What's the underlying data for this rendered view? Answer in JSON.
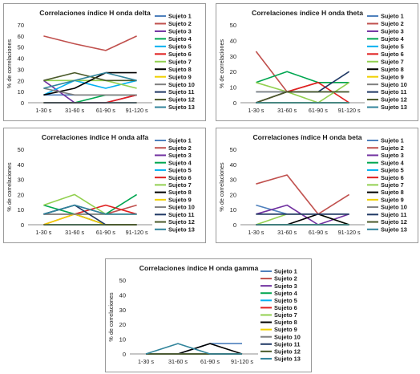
{
  "ylabel": "% de correlaciones",
  "chart_data": [
    {
      "type": "line",
      "title": "Correlaciones índice H onda delta",
      "categories": [
        "1-30 s",
        "31-60 s",
        "61-90 s",
        "91-120 s"
      ],
      "ylim": [
        0,
        70
      ],
      "yticks": [
        0,
        10,
        20,
        30,
        40,
        50,
        60,
        70
      ],
      "ylabel": "% de correlaciones",
      "series": [
        {
          "name": "Sujeto 1",
          "color": "#4F81BD",
          "values": [
            7,
            7,
            7,
            7
          ]
        },
        {
          "name": "Sujeto 2",
          "color": "#C0504D",
          "values": [
            60,
            53,
            47,
            60
          ]
        },
        {
          "name": "Sujeto 3",
          "color": "#7030A0",
          "values": [
            20,
            0,
            0,
            7
          ]
        },
        {
          "name": "Sujeto 4",
          "color": "#00A650",
          "values": [
            0,
            0,
            7,
            7
          ]
        },
        {
          "name": "Sujeto 5",
          "color": "#00B0F0",
          "values": [
            7,
            20,
            13,
            20
          ]
        },
        {
          "name": "Sujeto 6",
          "color": "#E02020",
          "values": [
            0,
            0,
            0,
            7
          ]
        },
        {
          "name": "Sujeto 7",
          "color": "#92D050",
          "values": [
            20,
            20,
            20,
            13
          ]
        },
        {
          "name": "Sujeto 8",
          "color": "#000000",
          "values": [
            7,
            13,
            27,
            27
          ]
        },
        {
          "name": "Sujeto 9",
          "color": "#F0D000",
          "values": [
            0,
            0,
            0,
            0
          ]
        },
        {
          "name": "Sujeto 10",
          "color": "#7F7F7F",
          "values": [
            13,
            7,
            7,
            7
          ]
        },
        {
          "name": "Sujeto 11",
          "color": "#1F3864",
          "values": [
            0,
            0,
            0,
            0
          ]
        },
        {
          "name": "Sujeto 12",
          "color": "#4A5A2A",
          "values": [
            20,
            27,
            20,
            20
          ]
        },
        {
          "name": "Sujeto 13",
          "color": "#31849B",
          "values": [
            13,
            20,
            27,
            20
          ]
        }
      ]
    },
    {
      "type": "line",
      "title": "Correlaciones índice H onda theta",
      "categories": [
        "1-30 s",
        "31-60 s",
        "61-90 s",
        "91-120 s"
      ],
      "ylim": [
        0,
        50
      ],
      "yticks": [
        0,
        10,
        20,
        30,
        40,
        50
      ],
      "ylabel": "% de correlaciones",
      "series": [
        {
          "name": "Sujeto 1",
          "color": "#4F81BD",
          "values": [
            7,
            7,
            7,
            7
          ]
        },
        {
          "name": "Sujeto 2",
          "color": "#C0504D",
          "values": [
            33,
            7,
            13,
            13
          ]
        },
        {
          "name": "Sujeto 3",
          "color": "#7030A0",
          "values": [
            0,
            0,
            0,
            0
          ]
        },
        {
          "name": "Sujeto 4",
          "color": "#00A650",
          "values": [
            13,
            20,
            13,
            13
          ]
        },
        {
          "name": "Sujeto 5",
          "color": "#00B0F0",
          "values": [
            0,
            0,
            0,
            0
          ]
        },
        {
          "name": "Sujeto 6",
          "color": "#E02020",
          "values": [
            0,
            7,
            13,
            0
          ]
        },
        {
          "name": "Sujeto 7",
          "color": "#92D050",
          "values": [
            13,
            7,
            0,
            13
          ]
        },
        {
          "name": "Sujeto 8",
          "color": "#000000",
          "values": [
            0,
            0,
            0,
            0
          ]
        },
        {
          "name": "Sujeto 9",
          "color": "#F0D000",
          "values": [
            0,
            0,
            0,
            0
          ]
        },
        {
          "name": "Sujeto 10",
          "color": "#7F7F7F",
          "values": [
            7,
            7,
            7,
            7
          ]
        },
        {
          "name": "Sujeto 11",
          "color": "#1F3864",
          "values": [
            0,
            7,
            7,
            20
          ]
        },
        {
          "name": "Sujeto 12",
          "color": "#4A5A2A",
          "values": [
            0,
            7,
            7,
            7
          ]
        },
        {
          "name": "Sujeto 13",
          "color": "#31849B",
          "values": [
            0,
            0,
            0,
            0
          ]
        }
      ]
    },
    {
      "type": "line",
      "title": "Correlaciones índice H onda alfa",
      "categories": [
        "1-30 s",
        "31-60 s",
        "61-90 s",
        "91-120 s"
      ],
      "ylim": [
        0,
        50
      ],
      "yticks": [
        0,
        10,
        20,
        30,
        40,
        50
      ],
      "ylabel": "% de correlaciones",
      "series": [
        {
          "name": "Sujeto 1",
          "color": "#4F81BD",
          "values": [
            7,
            13,
            7,
            7
          ]
        },
        {
          "name": "Sujeto 2",
          "color": "#C0504D",
          "values": [
            7,
            7,
            7,
            13
          ]
        },
        {
          "name": "Sujeto 3",
          "color": "#7030A0",
          "values": [
            0,
            0,
            0,
            0
          ]
        },
        {
          "name": "Sujeto 4",
          "color": "#00A650",
          "values": [
            13,
            7,
            7,
            20
          ]
        },
        {
          "name": "Sujeto 5",
          "color": "#00B0F0",
          "values": [
            0,
            0,
            0,
            0
          ]
        },
        {
          "name": "Sujeto 6",
          "color": "#E02020",
          "values": [
            0,
            7,
            13,
            7
          ]
        },
        {
          "name": "Sujeto 7",
          "color": "#92D050",
          "values": [
            13,
            20,
            7,
            7
          ]
        },
        {
          "name": "Sujeto 8",
          "color": "#000000",
          "values": [
            7,
            7,
            0,
            0
          ]
        },
        {
          "name": "Sujeto 9",
          "color": "#F0D000",
          "values": [
            0,
            7,
            0,
            0
          ]
        },
        {
          "name": "Sujeto 10",
          "color": "#7F7F7F",
          "values": [
            7,
            7,
            7,
            7
          ]
        },
        {
          "name": "Sujeto 11",
          "color": "#1F3864",
          "values": [
            7,
            13,
            0,
            0
          ]
        },
        {
          "name": "Sujeto 12",
          "color": "#4A5A2A",
          "values": [
            0,
            0,
            0,
            0
          ]
        },
        {
          "name": "Sujeto 13",
          "color": "#31849B",
          "values": [
            7,
            13,
            7,
            7
          ]
        }
      ]
    },
    {
      "type": "line",
      "title": "Correlaciones índice H onda beta",
      "categories": [
        "1-30 s",
        "31-60 s",
        "61-90 s",
        "91-120 s"
      ],
      "ylim": [
        0,
        50
      ],
      "yticks": [
        0,
        10,
        20,
        30,
        40,
        50
      ],
      "ylabel": "% de correlaciones",
      "series": [
        {
          "name": "Sujeto 1",
          "color": "#4F81BD",
          "values": [
            13,
            7,
            7,
            7
          ]
        },
        {
          "name": "Sujeto 2",
          "color": "#C0504D",
          "values": [
            27,
            33,
            7,
            20
          ]
        },
        {
          "name": "Sujeto 3",
          "color": "#7030A0",
          "values": [
            7,
            13,
            0,
            7
          ]
        },
        {
          "name": "Sujeto 4",
          "color": "#00A650",
          "values": [
            0,
            0,
            0,
            0
          ]
        },
        {
          "name": "Sujeto 5",
          "color": "#00B0F0",
          "values": [
            0,
            0,
            0,
            0
          ]
        },
        {
          "name": "Sujeto 6",
          "color": "#E02020",
          "values": [
            0,
            0,
            0,
            0
          ]
        },
        {
          "name": "Sujeto 7",
          "color": "#92D050",
          "values": [
            0,
            7,
            7,
            0
          ]
        },
        {
          "name": "Sujeto 8",
          "color": "#000000",
          "values": [
            0,
            0,
            7,
            0
          ]
        },
        {
          "name": "Sujeto 9",
          "color": "#F0D000",
          "values": [
            0,
            0,
            0,
            0
          ]
        },
        {
          "name": "Sujeto 10",
          "color": "#7F7F7F",
          "values": [
            7,
            7,
            7,
            7
          ]
        },
        {
          "name": "Sujeto 11",
          "color": "#1F3864",
          "values": [
            7,
            7,
            7,
            7
          ]
        },
        {
          "name": "Sujeto 12",
          "color": "#4A5A2A",
          "values": [
            0,
            0,
            0,
            0
          ]
        },
        {
          "name": "Sujeto 13",
          "color": "#31849B",
          "values": [
            0,
            0,
            0,
            0
          ]
        }
      ]
    },
    {
      "type": "line",
      "title": "Correlaciones índice H onda gamma",
      "categories": [
        "1-30 s",
        "31-60 s",
        "61-90 s",
        "91-120 s"
      ],
      "ylim": [
        0,
        50
      ],
      "yticks": [
        0,
        10,
        20,
        30,
        40,
        50
      ],
      "ylabel": "% de correlaciones",
      "series": [
        {
          "name": "Sujeto 1",
          "color": "#4F81BD",
          "values": [
            0,
            0,
            7,
            7
          ]
        },
        {
          "name": "Sujeto 2",
          "color": "#C0504D",
          "values": [
            0,
            0,
            0,
            0
          ]
        },
        {
          "name": "Sujeto 3",
          "color": "#7030A0",
          "values": [
            0,
            0,
            0,
            0
          ]
        },
        {
          "name": "Sujeto 4",
          "color": "#00A650",
          "values": [
            0,
            0,
            0,
            0
          ]
        },
        {
          "name": "Sujeto 5",
          "color": "#00B0F0",
          "values": [
            0,
            0,
            0,
            0
          ]
        },
        {
          "name": "Sujeto 6",
          "color": "#E02020",
          "values": [
            0,
            0,
            0,
            0
          ]
        },
        {
          "name": "Sujeto 7",
          "color": "#92D050",
          "values": [
            0,
            0,
            0,
            0
          ]
        },
        {
          "name": "Sujeto 8",
          "color": "#000000",
          "values": [
            0,
            0,
            7,
            0
          ]
        },
        {
          "name": "Sujeto 9",
          "color": "#F0D000",
          "values": [
            0,
            0,
            0,
            0
          ]
        },
        {
          "name": "Sujeto 10",
          "color": "#7F7F7F",
          "values": [
            0,
            0,
            0,
            0
          ]
        },
        {
          "name": "Sujeto 11",
          "color": "#1F3864",
          "values": [
            0,
            0,
            0,
            0
          ]
        },
        {
          "name": "Sujeto 12",
          "color": "#4A5A2A",
          "values": [
            0,
            0,
            0,
            0
          ]
        },
        {
          "name": "Sujeto 13",
          "color": "#31849B",
          "values": [
            0,
            7,
            0,
            0
          ]
        }
      ]
    }
  ]
}
